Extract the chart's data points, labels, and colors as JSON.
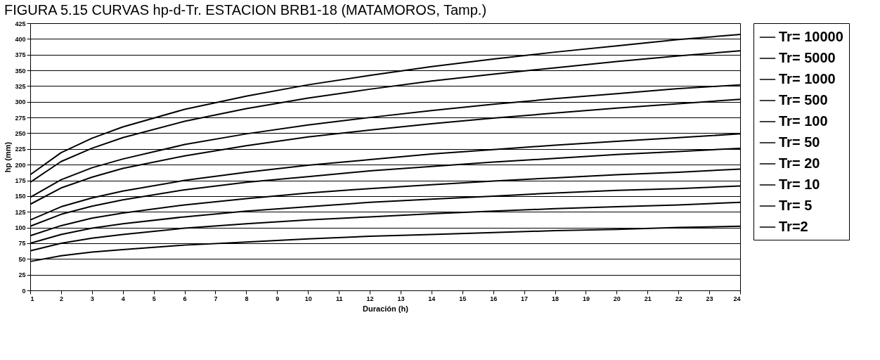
{
  "chart_data": {
    "type": "line",
    "title": "FIGURA 5.15 CURVAS hp-d-Tr. ESTACION BRB1-18 (MATAMOROS, Tamp.)",
    "xlabel": "Duración (h)",
    "ylabel": "hp (mm)",
    "x": [
      1,
      2,
      3,
      4,
      6,
      8,
      10,
      12,
      14,
      16,
      18,
      20,
      22,
      24
    ],
    "series": [
      {
        "name": "Tr= 10000",
        "color": "#000000",
        "values": [
          184,
          219,
          242,
          260,
          288,
          309,
          327,
          342,
          356,
          368,
          379,
          389,
          399,
          407
        ]
      },
      {
        "name": "Tr= 5000",
        "color": "#000000",
        "values": [
          172,
          205,
          226,
          243,
          269,
          289,
          306,
          320,
          333,
          344,
          354,
          364,
          373,
          381
        ]
      },
      {
        "name": "Tr= 1000",
        "color": "#000000",
        "values": [
          148,
          176,
          195,
          209,
          232,
          249,
          263,
          275,
          286,
          296,
          305,
          313,
          321,
          327
        ]
      },
      {
        "name": "Tr= 500",
        "color": "#000000",
        "values": [
          137,
          163,
          180,
          194,
          214,
          230,
          244,
          255,
          265,
          274,
          282,
          290,
          297,
          304
        ]
      },
      {
        "name": "Tr= 100",
        "color": "#000000",
        "values": [
          112,
          133,
          147,
          158,
          175,
          188,
          199,
          208,
          217,
          224,
          231,
          237,
          243,
          249
        ]
      },
      {
        "name": "Tr= 50",
        "color": "#000000",
        "values": [
          102,
          121,
          134,
          144,
          160,
          172,
          181,
          190,
          197,
          204,
          210,
          216,
          221,
          226
        ]
      },
      {
        "name": "Tr= 20",
        "color": "#000000",
        "values": [
          87,
          103,
          115,
          123,
          136,
          146,
          155,
          162,
          168,
          174,
          179,
          184,
          188,
          193
        ]
      },
      {
        "name": "Tr= 10",
        "color": "#000000",
        "values": [
          75,
          89,
          99,
          106,
          117,
          126,
          133,
          140,
          145,
          150,
          155,
          159,
          162,
          166
        ]
      },
      {
        "name": "Tr= 5",
        "color": "#000000",
        "values": [
          63,
          75,
          83,
          89,
          99,
          106,
          112,
          117,
          122,
          126,
          130,
          133,
          136,
          140
        ]
      },
      {
        "name": "Tr=2",
        "color": "#000000",
        "values": [
          46,
          55,
          61,
          65,
          72,
          77,
          82,
          86,
          89,
          92,
          95,
          97,
          100,
          102
        ]
      }
    ],
    "xlim": [
      1,
      24
    ],
    "xticks": [
      1,
      2,
      3,
      4,
      5,
      6,
      7,
      8,
      9,
      10,
      11,
      12,
      13,
      14,
      15,
      16,
      17,
      18,
      19,
      20,
      21,
      22,
      23,
      24
    ],
    "ylim": [
      0,
      425
    ],
    "yticks": [
      0,
      25,
      50,
      75,
      100,
      125,
      150,
      175,
      200,
      225,
      250,
      275,
      300,
      325,
      350,
      375,
      400,
      425
    ],
    "grid": "y",
    "legend": "right",
    "marker": "none",
    "line_style": "solid"
  }
}
